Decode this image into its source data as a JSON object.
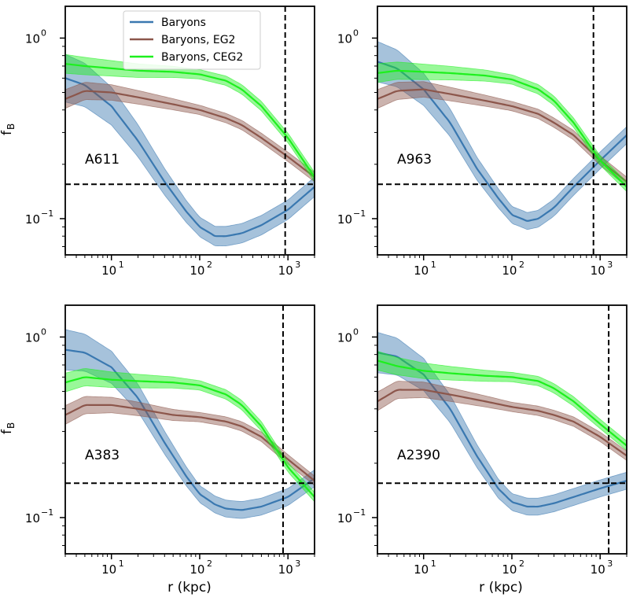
{
  "legend": [
    {
      "name": "Baryons",
      "color": "#3a78b0"
    },
    {
      "name": "Baryons, EG2",
      "color": "#8c564b"
    },
    {
      "name": "Baryons, CEG2",
      "color": "#1df01d"
    }
  ],
  "ylabel_main": "f",
  "ylabel_sub": "B",
  "xlabel": "r (kpc)",
  "chart_data": [
    {
      "type": "line",
      "panel": "A611",
      "xscale": "log",
      "yscale": "log",
      "xlim": [
        3,
        2000
      ],
      "ylim": [
        0.063,
        1.5
      ],
      "x_ticks": [
        10,
        100,
        1000
      ],
      "y_ticks": [
        0.1,
        1.0
      ],
      "hline": 0.155,
      "vline": 930,
      "series": [
        {
          "name": "Baryons",
          "color": "#3a78b0",
          "x": [
            3,
            5,
            10,
            20,
            40,
            70,
            100,
            150,
            200,
            300,
            500,
            1000,
            2000
          ],
          "y": [
            0.6,
            0.55,
            0.42,
            0.27,
            0.16,
            0.11,
            0.09,
            0.08,
            0.08,
            0.083,
            0.092,
            0.112,
            0.15
          ],
          "band": 0.12
        },
        {
          "name": "Baryons, EG2",
          "color": "#8c564b",
          "x": [
            3,
            5,
            10,
            20,
            50,
            100,
            200,
            300,
            500,
            1000,
            2000
          ],
          "y": [
            0.46,
            0.51,
            0.5,
            0.47,
            0.43,
            0.4,
            0.36,
            0.33,
            0.28,
            0.22,
            0.17
          ],
          "band": 0.04
        },
        {
          "name": "Baryons, CEG2",
          "color": "#1df01d",
          "x": [
            3,
            5,
            10,
            20,
            50,
            100,
            200,
            300,
            500,
            1000,
            2000
          ],
          "y": [
            0.72,
            0.7,
            0.68,
            0.66,
            0.65,
            0.63,
            0.58,
            0.52,
            0.42,
            0.28,
            0.17
          ],
          "band": 0.04
        }
      ]
    },
    {
      "type": "line",
      "panel": "A963",
      "xscale": "log",
      "yscale": "log",
      "xlim": [
        3,
        2000
      ],
      "ylim": [
        0.063,
        1.5
      ],
      "x_ticks": [
        10,
        100,
        1000
      ],
      "y_ticks": [
        0.1,
        1.0
      ],
      "hline": 0.155,
      "vline": 840,
      "series": [
        {
          "name": "Baryons",
          "color": "#3a78b0",
          "x": [
            3,
            5,
            10,
            20,
            40,
            70,
            100,
            150,
            200,
            300,
            500,
            1000,
            2000
          ],
          "y": [
            0.74,
            0.68,
            0.52,
            0.34,
            0.19,
            0.13,
            0.105,
            0.097,
            0.1,
            0.115,
            0.15,
            0.21,
            0.29
          ],
          "band": 0.1
        },
        {
          "name": "Baryons, EG2",
          "color": "#8c564b",
          "x": [
            3,
            5,
            10,
            20,
            50,
            100,
            200,
            300,
            500,
            1000,
            2000
          ],
          "y": [
            0.46,
            0.51,
            0.52,
            0.49,
            0.45,
            0.42,
            0.38,
            0.34,
            0.29,
            0.21,
            0.16
          ],
          "band": 0.04
        },
        {
          "name": "Baryons, CEG2",
          "color": "#1df01d",
          "x": [
            3,
            5,
            10,
            20,
            50,
            100,
            200,
            300,
            500,
            1000,
            2000
          ],
          "y": [
            0.64,
            0.66,
            0.65,
            0.64,
            0.62,
            0.59,
            0.52,
            0.45,
            0.34,
            0.21,
            0.15
          ],
          "band": 0.04
        }
      ]
    },
    {
      "type": "line",
      "panel": "A383",
      "xscale": "log",
      "yscale": "log",
      "xlim": [
        3,
        2000
      ],
      "ylim": [
        0.063,
        1.5
      ],
      "x_ticks": [
        10,
        100,
        1000
      ],
      "y_ticks": [
        0.1,
        1.0
      ],
      "hline": 0.155,
      "vline": 880,
      "series": [
        {
          "name": "Baryons",
          "color": "#3a78b0",
          "x": [
            3,
            5,
            10,
            20,
            40,
            70,
            100,
            150,
            200,
            300,
            500,
            1000,
            2000
          ],
          "y": [
            0.85,
            0.82,
            0.68,
            0.46,
            0.26,
            0.17,
            0.135,
            0.118,
            0.112,
            0.11,
            0.115,
            0.13,
            0.165
          ],
          "band": 0.1
        },
        {
          "name": "Baryons, EG2",
          "color": "#8c564b",
          "x": [
            3,
            5,
            10,
            20,
            50,
            100,
            200,
            300,
            500,
            1000,
            2000
          ],
          "y": [
            0.37,
            0.42,
            0.42,
            0.4,
            0.37,
            0.36,
            0.34,
            0.32,
            0.28,
            0.21,
            0.16
          ],
          "band": 0.04
        },
        {
          "name": "Baryons, CEG2",
          "color": "#1df01d",
          "x": [
            3,
            5,
            10,
            20,
            50,
            100,
            200,
            300,
            500,
            1000,
            2000
          ],
          "y": [
            0.56,
            0.6,
            0.58,
            0.57,
            0.56,
            0.54,
            0.48,
            0.42,
            0.32,
            0.19,
            0.13
          ],
          "band": 0.04
        }
      ]
    },
    {
      "type": "line",
      "panel": "A2390",
      "xscale": "log",
      "yscale": "log",
      "xlim": [
        3,
        2000
      ],
      "ylim": [
        0.063,
        1.5
      ],
      "x_ticks": [
        10,
        100,
        1000
      ],
      "y_ticks": [
        0.1,
        1.0
      ],
      "hline": 0.155,
      "vline": 1250,
      "series": [
        {
          "name": "Baryons",
          "color": "#3a78b0",
          "x": [
            3,
            5,
            10,
            20,
            40,
            70,
            100,
            150,
            200,
            300,
            500,
            1000,
            2000
          ],
          "y": [
            0.82,
            0.78,
            0.62,
            0.4,
            0.22,
            0.145,
            0.122,
            0.115,
            0.115,
            0.12,
            0.13,
            0.145,
            0.16
          ],
          "band": 0.1
        },
        {
          "name": "Baryons, EG2",
          "color": "#8c564b",
          "x": [
            3,
            5,
            10,
            20,
            50,
            100,
            200,
            300,
            500,
            1000,
            2000
          ],
          "y": [
            0.44,
            0.51,
            0.51,
            0.48,
            0.44,
            0.41,
            0.39,
            0.37,
            0.34,
            0.28,
            0.22
          ],
          "band": 0.04
        },
        {
          "name": "Baryons, CEG2",
          "color": "#1df01d",
          "x": [
            3,
            5,
            10,
            20,
            50,
            100,
            200,
            300,
            500,
            1000,
            2000
          ],
          "y": [
            0.74,
            0.69,
            0.65,
            0.63,
            0.61,
            0.6,
            0.57,
            0.52,
            0.44,
            0.33,
            0.25
          ],
          "band": 0.04
        }
      ]
    }
  ]
}
